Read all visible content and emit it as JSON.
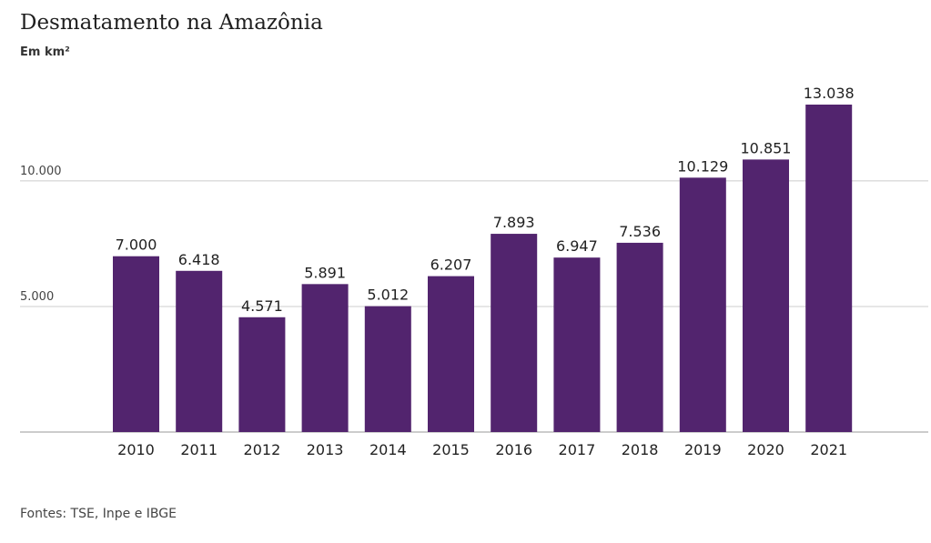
{
  "header": {
    "title": "Desmatamento na Amazônia",
    "subtitle": "Em km²"
  },
  "footer": {
    "source": "Fontes: TSE, Inpe e IBGE"
  },
  "colors": {
    "bar": "#52246e",
    "gridline": "#cccccc",
    "baseline": "#999999"
  },
  "chart_data": {
    "type": "bar",
    "title": "Desmatamento na Amazônia",
    "subtitle": "Em km²",
    "categories": [
      "2010",
      "2011",
      "2012",
      "2013",
      "2014",
      "2015",
      "2016",
      "2017",
      "2018",
      "2019",
      "2020",
      "2021"
    ],
    "values": [
      7000,
      6418,
      4571,
      5891,
      5012,
      6207,
      7893,
      6947,
      7536,
      10129,
      10851,
      13038
    ],
    "value_labels": [
      "7.000",
      "6.418",
      "4.571",
      "5.891",
      "5.012",
      "6.207",
      "7.893",
      "6.947",
      "7.536",
      "10.129",
      "10.851",
      "13.038"
    ],
    "yticks": [
      5000,
      10000
    ],
    "ytick_labels": [
      "5.000",
      "10.000"
    ],
    "ylim": [
      0,
      13038
    ],
    "grid": true,
    "legend": "none",
    "xlabel": "",
    "ylabel": ""
  }
}
